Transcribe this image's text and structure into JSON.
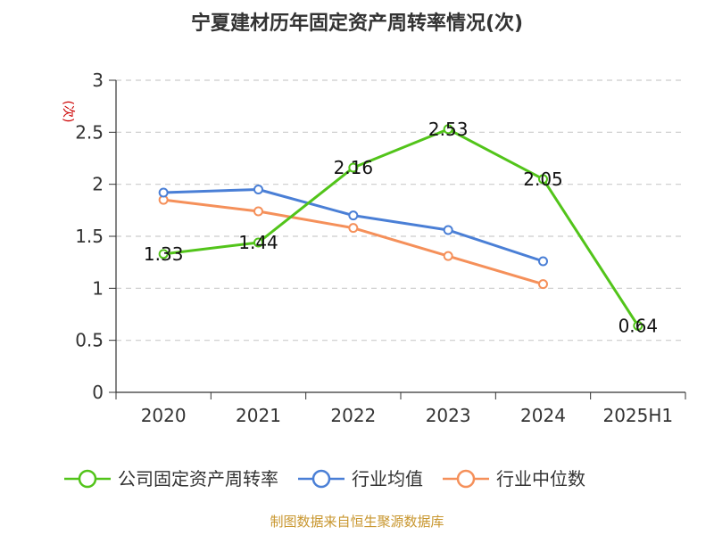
{
  "chart_data": {
    "type": "line",
    "title": "宁夏建材历年固定资产周转率情况(次)",
    "ylabel": "(次)",
    "xlabel": "",
    "categories": [
      "2020",
      "2021",
      "2022",
      "2023",
      "2024",
      "2025H1"
    ],
    "ylim": [
      0,
      3
    ],
    "yticks": [
      "0",
      "0.5",
      "1",
      "1.5",
      "2",
      "2.5",
      "3"
    ],
    "grid": true,
    "legend_position": "bottom",
    "series": [
      {
        "name": "公司固定资产周转率",
        "color": "#52c41a",
        "values": [
          1.33,
          1.44,
          2.16,
          2.53,
          2.05,
          0.64
        ],
        "labels": [
          "1.33",
          "1.44",
          "2.16",
          "2.53",
          "2.05",
          "0.64"
        ]
      },
      {
        "name": "行业均值",
        "color": "#4a7fd6",
        "values": [
          1.92,
          1.95,
          1.7,
          1.56,
          1.26,
          null
        ]
      },
      {
        "name": "行业中位数",
        "color": "#f5905a",
        "values": [
          1.85,
          1.74,
          1.58,
          1.31,
          1.04,
          null
        ]
      }
    ]
  },
  "source": "制图数据来自恒生聚源数据库"
}
